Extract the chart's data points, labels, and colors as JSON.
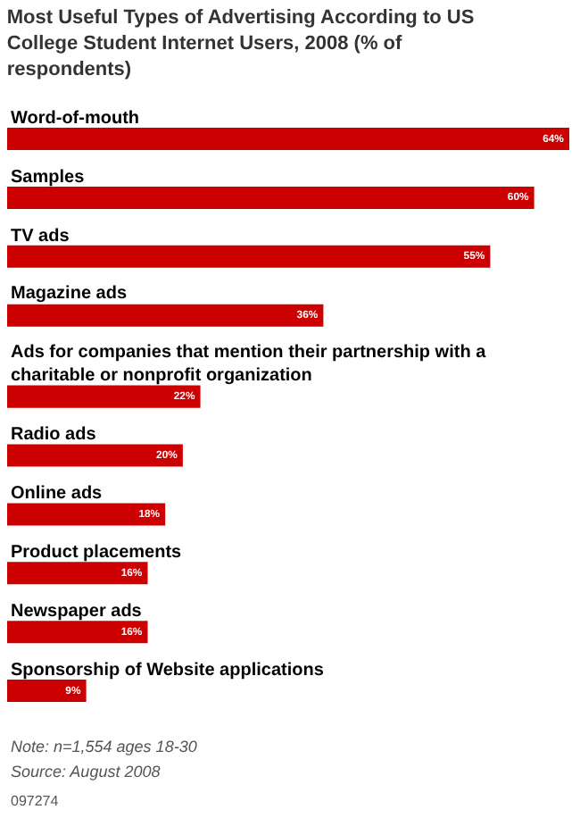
{
  "chart_data": {
    "type": "bar",
    "orientation": "horizontal",
    "title": "Most Useful Types of Advertising According to US College Student Internet Users, 2008 (% of respondents)",
    "categories": [
      "Word-of-mouth",
      "Samples",
      "TV ads",
      "Magazine ads",
      "Ads for companies that mention their partnership with a charitable or nonprofit organization",
      "Radio ads",
      "Online ads",
      "Product placements",
      "Newspaper ads",
      "Sponsorship of Website applications"
    ],
    "values": [
      64,
      60,
      55,
      36,
      22,
      20,
      18,
      16,
      16,
      9
    ],
    "value_labels": [
      "64%",
      "60%",
      "55%",
      "36%",
      "22%",
      "20%",
      "18%",
      "16%",
      "16%",
      "9%"
    ],
    "color": "#cc0000",
    "legend": false,
    "annotations": [
      "Note: n=1,554 ages 18-30",
      "Source: August 2008",
      "097274"
    ]
  }
}
